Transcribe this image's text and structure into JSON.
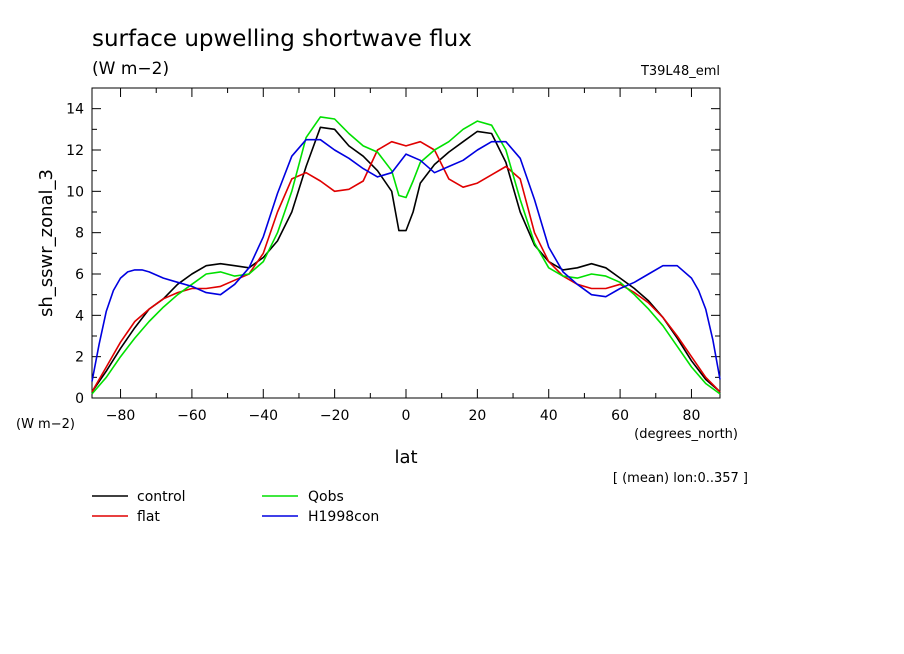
{
  "header": {
    "title": "surface upwelling shortwave flux",
    "units": "(W m−2)",
    "run_id": "T39L48_eml"
  },
  "footer_note": "[ (mean) lon:0..357 ]",
  "chart_data": {
    "type": "line",
    "xlabel": "lat",
    "xunits": "(degrees_north)",
    "ylabel": "sh_sswr_zonal_3",
    "yunits": "(W m−2)",
    "xlim": [
      -88,
      88
    ],
    "ylim": [
      0,
      15
    ],
    "xticks": [
      -80,
      -60,
      -40,
      -20,
      0,
      20,
      40,
      60,
      80
    ],
    "yticks": [
      0,
      2,
      4,
      6,
      8,
      10,
      12,
      14
    ],
    "grid": false,
    "legend_position": "bottom-left",
    "series": [
      {
        "name": "control",
        "color": "#000000",
        "x": [
          -88,
          -84,
          -80,
          -76,
          -72,
          -68,
          -64,
          -60,
          -56,
          -52,
          -48,
          -44,
          -40,
          -36,
          -32,
          -28,
          -24,
          -20,
          -16,
          -12,
          -8,
          -4,
          -2,
          0,
          2,
          4,
          8,
          12,
          16,
          20,
          24,
          28,
          32,
          36,
          40,
          44,
          48,
          52,
          56,
          60,
          64,
          68,
          72,
          76,
          80,
          84,
          88
        ],
        "y": [
          0.3,
          1.3,
          2.4,
          3.4,
          4.3,
          4.8,
          5.5,
          6.0,
          6.4,
          6.5,
          6.4,
          6.3,
          6.8,
          7.6,
          9.0,
          11.2,
          13.1,
          13.0,
          12.2,
          11.7,
          11.0,
          10.0,
          8.1,
          8.1,
          9.0,
          10.4,
          11.3,
          11.9,
          12.4,
          12.9,
          12.8,
          11.4,
          9.0,
          7.4,
          6.6,
          6.2,
          6.3,
          6.5,
          6.3,
          5.8,
          5.3,
          4.7,
          3.9,
          2.9,
          1.8,
          0.9,
          0.3
        ]
      },
      {
        "name": "flat",
        "color": "#e00000",
        "x": [
          -88,
          -84,
          -80,
          -76,
          -72,
          -68,
          -64,
          -60,
          -56,
          -52,
          -48,
          -44,
          -40,
          -36,
          -32,
          -28,
          -24,
          -20,
          -16,
          -12,
          -8,
          -4,
          0,
          4,
          8,
          12,
          16,
          20,
          24,
          28,
          32,
          36,
          40,
          44,
          48,
          52,
          56,
          60,
          64,
          68,
          72,
          76,
          80,
          84,
          88
        ],
        "y": [
          0.3,
          1.5,
          2.7,
          3.7,
          4.3,
          4.8,
          5.1,
          5.3,
          5.3,
          5.4,
          5.7,
          6.0,
          7.0,
          9.0,
          10.6,
          10.9,
          10.5,
          10.0,
          10.1,
          10.5,
          12.0,
          12.4,
          12.2,
          12.4,
          12.0,
          10.6,
          10.2,
          10.4,
          10.8,
          11.2,
          10.6,
          8.0,
          6.6,
          5.9,
          5.5,
          5.3,
          5.3,
          5.5,
          5.1,
          4.6,
          3.9,
          3.0,
          2.0,
          1.0,
          0.3
        ]
      },
      {
        "name": "Qobs",
        "color": "#00e000",
        "x": [
          -88,
          -84,
          -80,
          -76,
          -72,
          -68,
          -64,
          -60,
          -56,
          -52,
          -48,
          -44,
          -40,
          -36,
          -32,
          -28,
          -24,
          -20,
          -16,
          -12,
          -8,
          -4,
          -2,
          0,
          2,
          4,
          8,
          12,
          16,
          20,
          24,
          28,
          32,
          36,
          40,
          44,
          48,
          52,
          56,
          60,
          64,
          68,
          72,
          76,
          80,
          84,
          88
        ],
        "y": [
          0.2,
          1.0,
          2.0,
          2.9,
          3.7,
          4.4,
          5.0,
          5.5,
          6.0,
          6.1,
          5.9,
          6.0,
          6.6,
          8.0,
          10.0,
          12.6,
          13.6,
          13.5,
          12.8,
          12.2,
          11.9,
          11.0,
          9.8,
          9.7,
          10.5,
          11.4,
          12.0,
          12.4,
          13.0,
          13.4,
          13.2,
          12.0,
          9.6,
          7.5,
          6.3,
          5.9,
          5.8,
          6.0,
          5.9,
          5.6,
          5.0,
          4.3,
          3.5,
          2.5,
          1.5,
          0.7,
          0.2
        ]
      },
      {
        "name": "H1998con",
        "color": "#0000e0",
        "x": [
          -88,
          -86,
          -84,
          -82,
          -80,
          -78,
          -76,
          -74,
          -72,
          -68,
          -64,
          -60,
          -56,
          -52,
          -48,
          -44,
          -40,
          -36,
          -32,
          -28,
          -24,
          -20,
          -16,
          -12,
          -8,
          -4,
          0,
          4,
          8,
          12,
          16,
          20,
          24,
          28,
          32,
          36,
          40,
          44,
          48,
          52,
          56,
          60,
          64,
          68,
          72,
          76,
          80,
          82,
          84,
          86,
          88
        ],
        "y": [
          0.8,
          2.6,
          4.2,
          5.2,
          5.8,
          6.1,
          6.2,
          6.2,
          6.1,
          5.8,
          5.6,
          5.4,
          5.1,
          5.0,
          5.5,
          6.3,
          7.8,
          9.9,
          11.7,
          12.5,
          12.5,
          12.0,
          11.6,
          11.1,
          10.7,
          10.9,
          11.8,
          11.5,
          10.9,
          11.2,
          11.5,
          12.0,
          12.4,
          12.4,
          11.6,
          9.6,
          7.3,
          6.1,
          5.5,
          5.0,
          4.9,
          5.3,
          5.6,
          6.0,
          6.4,
          6.4,
          5.8,
          5.2,
          4.3,
          2.8,
          0.9
        ]
      }
    ]
  }
}
